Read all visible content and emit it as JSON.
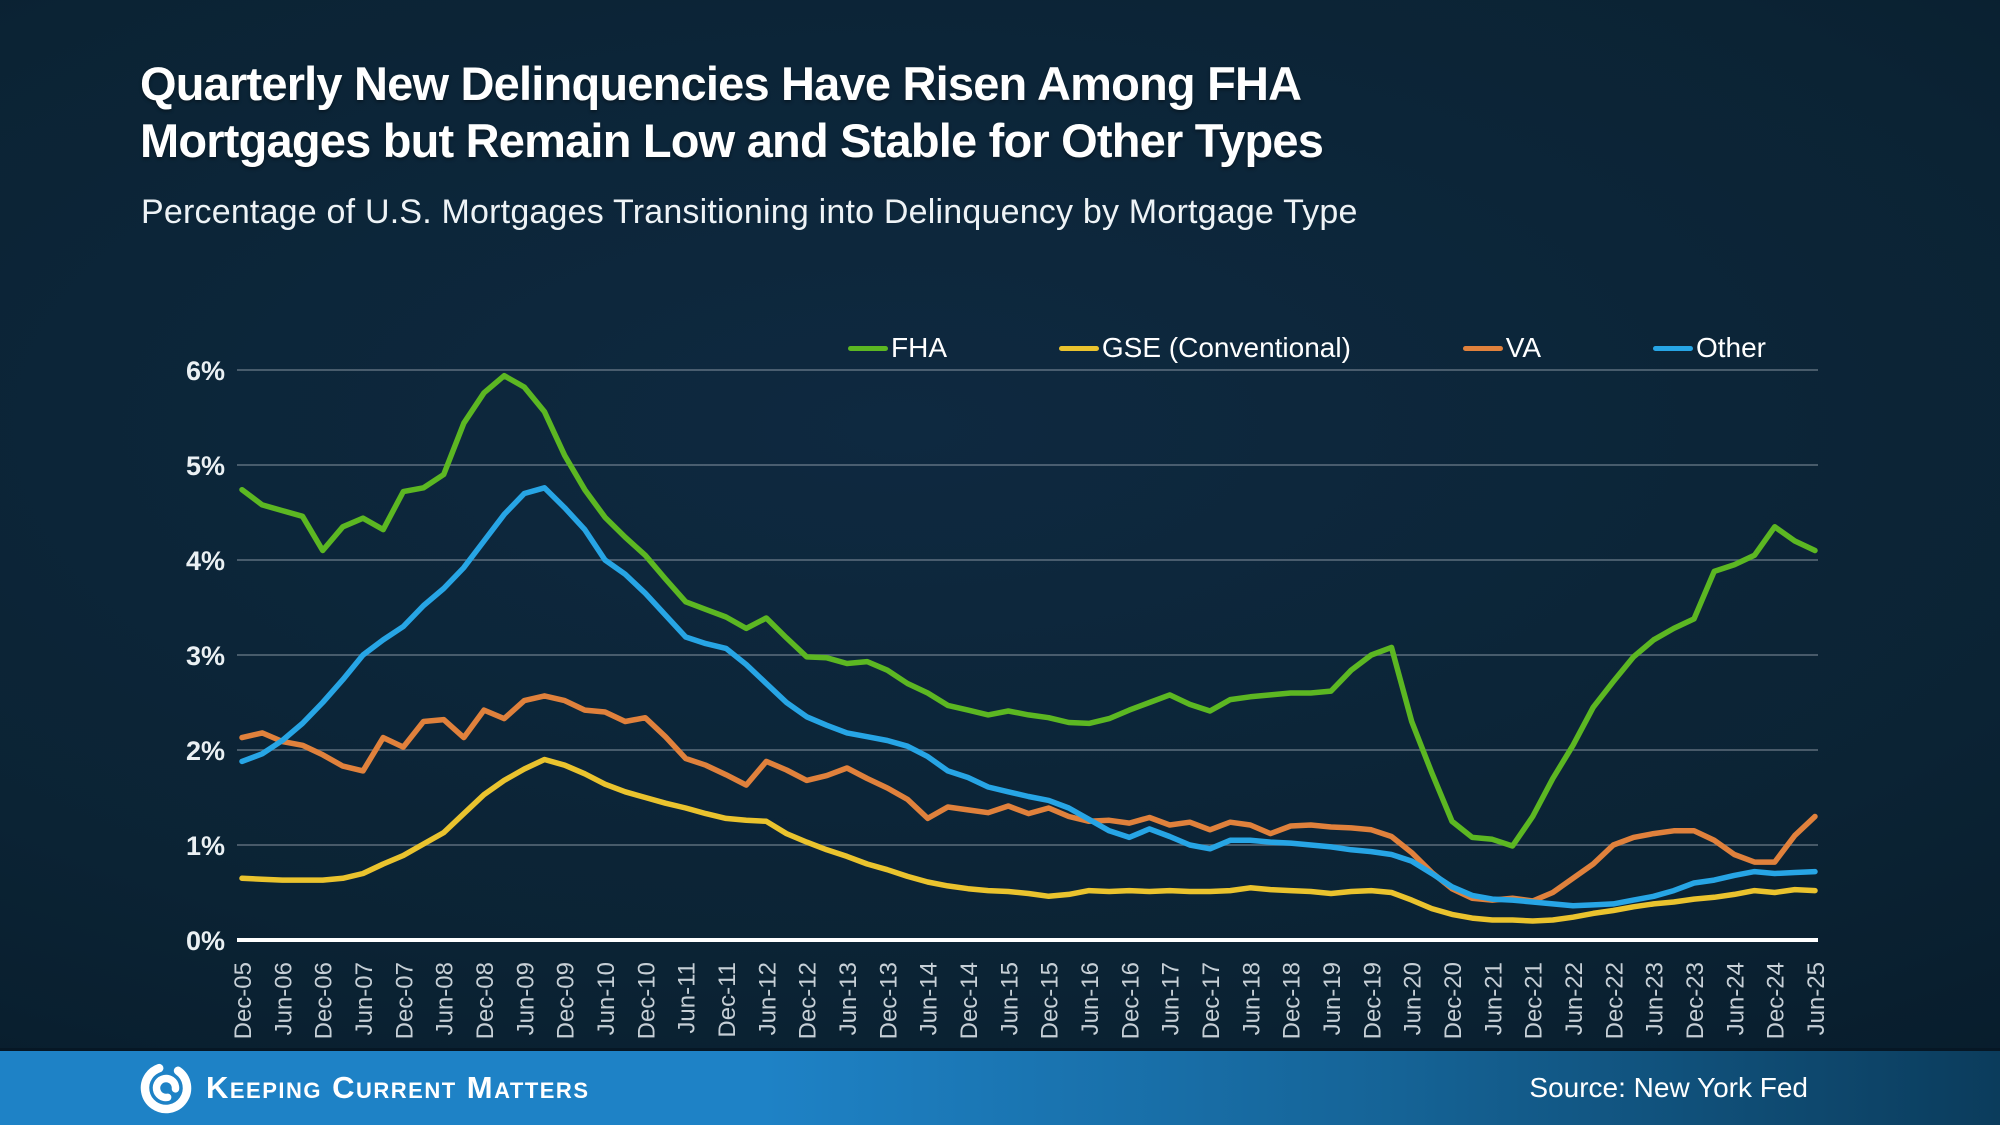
{
  "header": {
    "title_line1": "Quarterly New Delinquencies Have Risen Among FHA",
    "title_line2": "Mortgages but Remain Low and Stable for Other Types",
    "subtitle": "Percentage of U.S. Mortgages Transitioning into Delinquency by Mortgage Type"
  },
  "footer": {
    "brand": "Keeping Current Matters",
    "source": "Source: New York Fed"
  },
  "chart_data": {
    "type": "line",
    "title": "Percentage of U.S. Mortgages Transitioning into Delinquency by Mortgage Type",
    "grid": true,
    "legend_position": "top",
    "ylim": [
      0,
      6
    ],
    "y_tick_step": 1,
    "y_tick_suffix": "%",
    "y_tick_labels": [
      "0%",
      "1%",
      "2%",
      "3%",
      "4%",
      "5%",
      "6%"
    ],
    "points_per_x_tick": 2,
    "x_tick_labels": [
      "Dec-05",
      "Jun-06",
      "Dec-06",
      "Jun-07",
      "Dec-07",
      "Jun-08",
      "Dec-08",
      "Jun-09",
      "Dec-09",
      "Jun-10",
      "Dec-10",
      "Jun-11",
      "Dec-11",
      "Jun-12",
      "Dec-12",
      "Jun-13",
      "Dec-13",
      "Jun-14",
      "Dec-14",
      "Jun-15",
      "Dec-15",
      "Jun-16",
      "Dec-16",
      "Jun-17",
      "Dec-17",
      "Jun-18",
      "Dec-18",
      "Jun-19",
      "Dec-19",
      "Jun-20",
      "Dec-20",
      "Jun-21",
      "Dec-21",
      "Jun-22",
      "Dec-22",
      "Jun-23",
      "Dec-23",
      "Jun-24",
      "Dec-24",
      "Jun-25"
    ],
    "series": [
      {
        "name": "FHA",
        "color": "#5cb722",
        "values": [
          4.74,
          4.58,
          4.52,
          4.46,
          4.1,
          4.35,
          4.44,
          4.32,
          4.72,
          4.76,
          4.9,
          5.44,
          5.76,
          5.94,
          5.82,
          5.56,
          5.1,
          4.74,
          4.45,
          4.24,
          4.05,
          3.8,
          3.56,
          3.48,
          3.4,
          3.28,
          3.39,
          3.18,
          2.98,
          2.97,
          2.91,
          2.93,
          2.84,
          2.7,
          2.6,
          2.47,
          2.42,
          2.37,
          2.41,
          2.37,
          2.34,
          2.29,
          2.28,
          2.33,
          2.42,
          2.5,
          2.58,
          2.48,
          2.41,
          2.53,
          2.56,
          2.58,
          2.6,
          2.6,
          2.62,
          2.84,
          3.0,
          3.08,
          2.3,
          1.76,
          1.25,
          1.08,
          1.06,
          0.99,
          1.3,
          1.7,
          2.05,
          2.45,
          2.72,
          2.98,
          3.16,
          3.28,
          3.38,
          3.88,
          3.95,
          4.05,
          4.35,
          4.2,
          4.1
        ]
      },
      {
        "name": "GSE (Conventional)",
        "color": "#eac32e",
        "values": [
          0.65,
          0.64,
          0.63,
          0.63,
          0.63,
          0.65,
          0.7,
          0.8,
          0.89,
          1.01,
          1.13,
          1.33,
          1.53,
          1.68,
          1.8,
          1.9,
          1.84,
          1.75,
          1.64,
          1.56,
          1.5,
          1.44,
          1.39,
          1.33,
          1.28,
          1.26,
          1.25,
          1.12,
          1.03,
          0.95,
          0.88,
          0.8,
          0.74,
          0.67,
          0.61,
          0.57,
          0.54,
          0.52,
          0.51,
          0.49,
          0.46,
          0.48,
          0.52,
          0.51,
          0.52,
          0.51,
          0.52,
          0.51,
          0.51,
          0.52,
          0.55,
          0.53,
          0.52,
          0.51,
          0.49,
          0.51,
          0.52,
          0.5,
          0.42,
          0.33,
          0.27,
          0.23,
          0.21,
          0.21,
          0.2,
          0.21,
          0.24,
          0.28,
          0.31,
          0.35,
          0.38,
          0.4,
          0.43,
          0.45,
          0.48,
          0.52,
          0.5,
          0.53,
          0.52
        ]
      },
      {
        "name": "VA",
        "color": "#e0813c",
        "values": [
          2.13,
          2.18,
          2.09,
          2.05,
          1.95,
          1.83,
          1.78,
          2.13,
          2.03,
          2.3,
          2.32,
          2.13,
          2.42,
          2.33,
          2.52,
          2.57,
          2.52,
          2.42,
          2.4,
          2.3,
          2.34,
          2.14,
          1.91,
          1.84,
          1.74,
          1.63,
          1.88,
          1.79,
          1.68,
          1.73,
          1.81,
          1.7,
          1.6,
          1.48,
          1.28,
          1.4,
          1.37,
          1.34,
          1.41,
          1.33,
          1.39,
          1.3,
          1.25,
          1.26,
          1.23,
          1.29,
          1.21,
          1.24,
          1.16,
          1.24,
          1.21,
          1.12,
          1.2,
          1.21,
          1.19,
          1.18,
          1.16,
          1.09,
          0.92,
          0.71,
          0.54,
          0.44,
          0.42,
          0.44,
          0.41,
          0.5,
          0.65,
          0.8,
          1.0,
          1.08,
          1.12,
          1.15,
          1.15,
          1.05,
          0.9,
          0.82,
          0.82,
          1.1,
          1.3
        ]
      },
      {
        "name": "Other",
        "color": "#27a5e5",
        "values": [
          1.88,
          1.96,
          2.1,
          2.28,
          2.5,
          2.74,
          3.0,
          3.16,
          3.3,
          3.52,
          3.7,
          3.92,
          4.2,
          4.48,
          4.7,
          4.76,
          4.55,
          4.32,
          4.0,
          3.85,
          3.65,
          3.42,
          3.19,
          3.12,
          3.07,
          2.9,
          2.7,
          2.5,
          2.35,
          2.26,
          2.18,
          2.14,
          2.1,
          2.04,
          1.93,
          1.78,
          1.71,
          1.61,
          1.56,
          1.51,
          1.47,
          1.39,
          1.27,
          1.15,
          1.08,
          1.17,
          1.09,
          1.0,
          0.96,
          1.05,
          1.05,
          1.03,
          1.02,
          1.0,
          0.98,
          0.95,
          0.93,
          0.9,
          0.83,
          0.7,
          0.56,
          0.47,
          0.43,
          0.42,
          0.4,
          0.38,
          0.36,
          0.37,
          0.38,
          0.42,
          0.46,
          0.52,
          0.6,
          0.63,
          0.68,
          0.72,
          0.7,
          0.71,
          0.72
        ]
      }
    ]
  }
}
